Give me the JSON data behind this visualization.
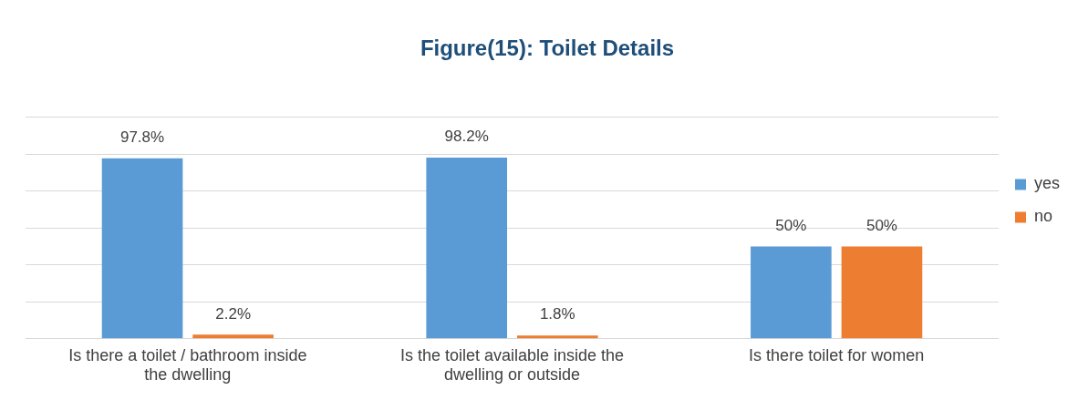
{
  "chart_data": {
    "type": "bar",
    "title": "Figure(15): Toilet Details",
    "categories": [
      "Is there a toilet / bathroom inside the dwelling",
      "Is the toilet available inside the dwelling or outside",
      "Is there toilet for women"
    ],
    "series": [
      {
        "name": "yes",
        "color": "#5b9bd5",
        "values": [
          97.8,
          98.2,
          50
        ],
        "value_labels": [
          "97.8%",
          "98.2%",
          "50%"
        ]
      },
      {
        "name": "no",
        "color": "#ed7d31",
        "values": [
          2.2,
          1.8,
          50
        ],
        "value_labels": [
          "2.2%",
          "1.8%",
          "50%"
        ]
      }
    ],
    "ylim": [
      0,
      120
    ],
    "yticks": [
      {
        "value": 0,
        "label": null
      },
      {
        "value": 20,
        "label": null
      },
      {
        "value": 40,
        "label": null
      },
      {
        "value": 60,
        "label": null
      },
      {
        "value": 80,
        "label": null
      },
      {
        "value": 100,
        "label": null
      },
      {
        "value": 120,
        "label": null
      }
    ],
    "tick_labels": "x",
    "grid": "y",
    "legend": "right"
  }
}
